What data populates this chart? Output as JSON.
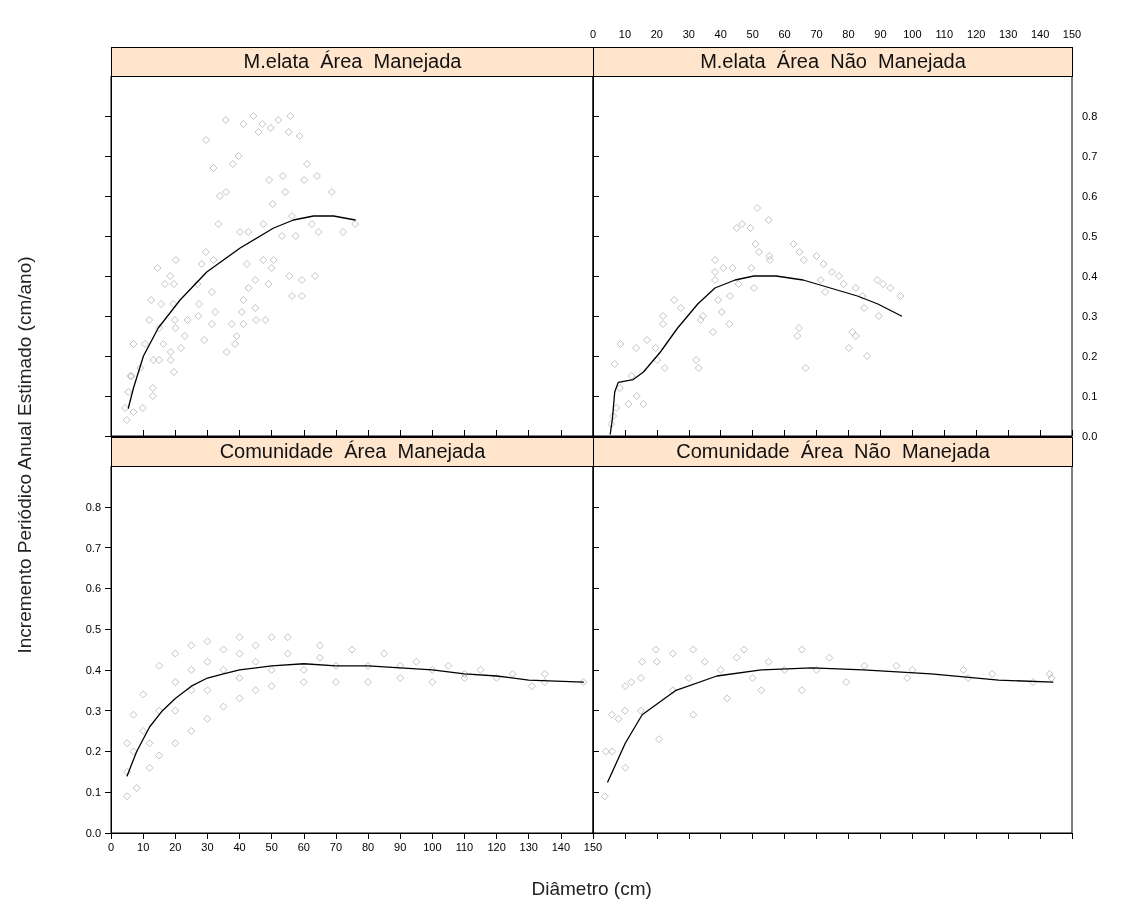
{
  "chart_data": [
    {
      "type": "scatter",
      "title": "M.elata  Área  Manejada",
      "xlim": [
        0,
        150
      ],
      "ylim": [
        0,
        0.9
      ],
      "xticks": [
        0,
        10,
        20,
        30,
        40,
        50,
        60,
        70,
        80,
        90,
        100,
        110,
        120,
        130,
        140,
        150
      ],
      "yticks": [
        0,
        0.1,
        0.2,
        0.3,
        0.4,
        0.5,
        0.6,
        0.7,
        0.8
      ],
      "tick_labels": false,
      "series": [
        {
          "type": "scatter",
          "marker": "diamond",
          "color": "#b4b4b4",
          "x": [
            35.7,
            41.2,
            44.3,
            47.1,
            45.9,
            49.7,
            52.1,
            55.8,
            55.3,
            58.7,
            29.6,
            39.7,
            37.9,
            31.9,
            61,
            64.1,
            53.5,
            49.2,
            60.1,
            54.2,
            68.7,
            33.9,
            35.8,
            50.3,
            33.4,
            56.3,
            62.5,
            64.6,
            72.2,
            76,
            47.4,
            40.2,
            42.8,
            53.2,
            57.5,
            29.5,
            20.2,
            28.2,
            31.9,
            42.3,
            47.4,
            50.6,
            50,
            14.5,
            18.4,
            19.6,
            16.8,
            55.5,
            59.4,
            63.5,
            44.9,
            42.8,
            49,
            31.4,
            26.9,
            56.3,
            59.4,
            41.2,
            12.5,
            15.6,
            19.4,
            27.4,
            44.9,
            40.7,
            27.2,
            32.4,
            48,
            45.2,
            19.9,
            23.8,
            11.9,
            37.6,
            41.2,
            31.4,
            15,
            20.1,
            23,
            29,
            39.1,
            38.6,
            36,
            16.3,
            21.8,
            7,
            10.6,
            18.6,
            13.2,
            15,
            18.6,
            19.6,
            9.1,
            6.4,
            13,
            13,
            9.9,
            4.9,
            4.4,
            5.4,
            6,
            7
          ],
          "values": [
            0.79,
            0.78,
            0.8,
            0.78,
            0.76,
            0.77,
            0.79,
            0.8,
            0.76,
            0.75,
            0.74,
            0.7,
            0.68,
            0.67,
            0.68,
            0.65,
            0.65,
            0.64,
            0.64,
            0.61,
            0.61,
            0.6,
            0.61,
            0.58,
            0.53,
            0.55,
            0.53,
            0.51,
            0.51,
            0.53,
            0.53,
            0.51,
            0.51,
            0.5,
            0.5,
            0.46,
            0.44,
            0.43,
            0.44,
            0.43,
            0.44,
            0.44,
            0.42,
            0.42,
            0.4,
            0.38,
            0.38,
            0.4,
            0.39,
            0.4,
            0.39,
            0.37,
            0.38,
            0.36,
            0.38,
            0.35,
            0.35,
            0.34,
            0.34,
            0.33,
            0.33,
            0.33,
            0.32,
            0.31,
            0.3,
            0.31,
            0.29,
            0.29,
            0.29,
            0.29,
            0.29,
            0.28,
            0.28,
            0.28,
            0.27,
            0.27,
            0.25,
            0.24,
            0.25,
            0.23,
            0.21,
            0.23,
            0.22,
            0.23,
            0.23,
            0.21,
            0.19,
            0.19,
            0.19,
            0.16,
            0.17,
            0.15,
            0.12,
            0.1,
            0.07,
            0.04,
            0.07,
            0.11,
            0.15,
            0.06
          ]
        },
        {
          "type": "line",
          "marker": "none",
          "line_style": "solid",
          "color": "#000000",
          "x": [
            5.4,
            7,
            10.1,
            14.7,
            21.5,
            29.8,
            40.2,
            50.6,
            56.8,
            63,
            69.3,
            76
          ],
          "values": [
            0.07,
            0.12,
            0.2,
            0.27,
            0.34,
            0.41,
            0.47,
            0.52,
            0.54,
            0.55,
            0.55,
            0.54
          ]
        }
      ]
    },
    {
      "type": "scatter",
      "title": "M.elata  Área  Não  Manejada",
      "xlim": [
        0,
        150
      ],
      "ylim": [
        0,
        0.9
      ],
      "xticks": [
        0,
        10,
        20,
        30,
        40,
        50,
        60,
        70,
        80,
        90,
        100,
        110,
        120,
        130,
        140,
        150
      ],
      "yticks": [
        {
          "value": 0,
          "label": "0.0"
        },
        0.1,
        0.2,
        0.3,
        0.4,
        0.5,
        0.6,
        0.7,
        0.8
      ],
      "series": [
        {
          "type": "scatter",
          "marker": "diamond",
          "color": "#b4b4b4",
          "x": [
            51.4,
            55,
            45,
            46.7,
            49.3,
            50.9,
            52,
            55.2,
            55.4,
            62.8,
            64.7,
            66,
            70,
            72.2,
            74.8,
            77,
            78.5,
            82.3,
            89,
            90.8,
            93.1,
            96.3,
            84.4,
            84.9,
            89.5,
            71.3,
            72.7,
            38.2,
            38.2,
            40.8,
            43.7,
            49.6,
            38.2,
            45.6,
            50.4,
            42.9,
            39.2,
            40.3,
            25.4,
            27.5,
            34.4,
            33.7,
            37.6,
            42.7,
            21.9,
            21.9,
            16.9,
            13.5,
            19.6,
            8.6,
            6.8,
            32.3,
            33.1,
            22.5,
            20.1,
            64.5,
            64,
            66.6,
            81.2,
            82.3,
            80.1,
            85.8,
            12.1,
            8.4,
            13.7,
            15.8,
            11.1,
            7.3,
            6.3,
            5.7
          ],
          "values": [
            0.57,
            0.54,
            0.52,
            0.53,
            0.52,
            0.48,
            0.46,
            0.45,
            0.44,
            0.48,
            0.46,
            0.44,
            0.45,
            0.43,
            0.41,
            0.4,
            0.38,
            0.37,
            0.39,
            0.38,
            0.37,
            0.35,
            0.35,
            0.32,
            0.3,
            0.39,
            0.36,
            0.44,
            0.41,
            0.42,
            0.42,
            0.42,
            0.39,
            0.38,
            0.37,
            0.35,
            0.34,
            0.31,
            0.34,
            0.32,
            0.3,
            0.29,
            0.26,
            0.28,
            0.3,
            0.28,
            0.24,
            0.22,
            0.22,
            0.23,
            0.18,
            0.19,
            0.17,
            0.17,
            0.19,
            0.27,
            0.25,
            0.17,
            0.26,
            0.25,
            0.22,
            0.2,
            0.15,
            0.12,
            0.1,
            0.08,
            0.08,
            0.07,
            0.05,
            0.03
          ]
        },
        {
          "type": "line",
          "marker": "none",
          "line_style": "solid",
          "color": "#000000",
          "x": [
            5.4,
            6.1,
            6.8,
            7.9,
            12.6,
            15.8,
            21.1,
            26.5,
            32.8,
            38.2,
            44.5,
            50.4,
            57.3,
            65.8,
            74.3,
            82.8,
            89.2,
            96.6
          ],
          "values": [
            0.005,
            0.045,
            0.11,
            0.134,
            0.141,
            0.16,
            0.21,
            0.27,
            0.33,
            0.37,
            0.39,
            0.4,
            0.4,
            0.39,
            0.37,
            0.35,
            0.33,
            0.3
          ]
        }
      ]
    },
    {
      "type": "scatter",
      "title": "Comunidade  Área  Manejada",
      "xlabel": "Diâmetro (cm)",
      "ylabel": "Incremento Periódico Anual Estimado (cm/ano)",
      "xlim": [
        0,
        150
      ],
      "ylim": [
        0,
        0.9
      ],
      "xticks": [
        0,
        10,
        20,
        30,
        40,
        50,
        60,
        70,
        80,
        90,
        100,
        110,
        120,
        130,
        140,
        150
      ],
      "yticks": [
        {
          "value": 0,
          "label": "0.0"
        },
        0.1,
        0.2,
        0.3,
        0.4,
        0.5,
        0.6,
        0.7,
        0.8
      ],
      "series": [
        {
          "type": "scatter",
          "marker": "diamond",
          "color": "#b4b4b4",
          "x": [
            5,
            7,
            10,
            15,
            20,
            25,
            30,
            40,
            50,
            55,
            65,
            75,
            85,
            95,
            105,
            115,
            125,
            135,
            147,
            5,
            8,
            12,
            15,
            20,
            25,
            30,
            35,
            40,
            45,
            50,
            60,
            70,
            80,
            90,
            100,
            110,
            120,
            131,
            135,
            5,
            7,
            10,
            12,
            15,
            20,
            20,
            25,
            25,
            30,
            30,
            35,
            35,
            40,
            40,
            45,
            45,
            50,
            55,
            60,
            65,
            70,
            80,
            90,
            100,
            110
          ],
          "values": [
            0.22,
            0.29,
            0.34,
            0.41,
            0.44,
            0.46,
            0.47,
            0.48,
            0.48,
            0.48,
            0.46,
            0.45,
            0.44,
            0.42,
            0.41,
            0.4,
            0.39,
            0.39,
            0.37,
            0.09,
            0.11,
            0.16,
            0.19,
            0.22,
            0.25,
            0.28,
            0.31,
            0.33,
            0.35,
            0.36,
            0.37,
            0.37,
            0.37,
            0.38,
            0.37,
            0.38,
            0.38,
            0.36,
            0.37,
            0.15,
            0.2,
            0.25,
            0.22,
            0.3,
            0.3,
            0.37,
            0.35,
            0.4,
            0.35,
            0.42,
            0.4,
            0.45,
            0.38,
            0.44,
            0.42,
            0.46,
            0.4,
            0.44,
            0.4,
            0.43,
            0.41,
            0.41,
            0.41,
            0.4,
            0.39
          ]
        },
        {
          "type": "line",
          "marker": "none",
          "line_style": "solid",
          "color": "#000000",
          "x": [
            5,
            8,
            12,
            16,
            20,
            25,
            30,
            35,
            40,
            50,
            60,
            70,
            80,
            90,
            100,
            110,
            120,
            130,
            147
          ],
          "values": [
            0.14,
            0.2,
            0.26,
            0.3,
            0.33,
            0.36,
            0.38,
            0.39,
            0.4,
            0.41,
            0.415,
            0.41,
            0.41,
            0.405,
            0.4,
            0.39,
            0.385,
            0.375,
            0.37
          ]
        }
      ]
    },
    {
      "type": "scatter",
      "title": "Comunidade  Área  Não  Manejada",
      "xlim": [
        0,
        150
      ],
      "ylim": [
        0,
        0.9
      ],
      "xticks": [
        0,
        10,
        20,
        30,
        40,
        50,
        60,
        70,
        80,
        90,
        100,
        110,
        120,
        130,
        140,
        150
      ],
      "yticks": [
        0,
        0.1,
        0.2,
        0.3,
        0.4,
        0.5,
        0.6,
        0.7,
        0.8
      ],
      "tick_labels": false,
      "series": [
        {
          "type": "scatter",
          "marker": "diamond",
          "color": "#b4b4b4",
          "x": [
            4,
            5.9,
            10.1,
            15.4,
            19.7,
            31.4,
            47.3,
            65.4,
            74,
            95,
            116,
            143,
            3.7,
            10.1,
            20.7,
            31.4,
            42,
            52.7,
            65.4,
            79.3,
            98.4,
            117.5,
            137.8,
            143.6,
            6,
            8,
            10,
            12,
            15,
            15,
            20,
            25,
            25,
            30,
            35,
            40,
            45,
            50,
            55,
            60,
            70,
            85,
            100,
            125
          ],
          "values": [
            0.2,
            0.29,
            0.36,
            0.42,
            0.45,
            0.45,
            0.45,
            0.45,
            0.43,
            0.41,
            0.4,
            0.39,
            0.09,
            0.16,
            0.23,
            0.29,
            0.33,
            0.35,
            0.35,
            0.37,
            0.38,
            0.38,
            0.37,
            0.38,
            0.2,
            0.28,
            0.3,
            0.37,
            0.38,
            0.3,
            0.42,
            0.44,
            0.35,
            0.38,
            0.42,
            0.4,
            0.43,
            0.38,
            0.42,
            0.4,
            0.4,
            0.41,
            0.4,
            0.39
          ]
        },
        {
          "type": "line",
          "marker": "none",
          "line_style": "solid",
          "color": "#000000",
          "x": [
            4.6,
            10.1,
            15.4,
            26,
            38.8,
            52.7,
            68.6,
            84.6,
            105.9,
            127,
            144
          ],
          "values": [
            0.125,
            0.22,
            0.29,
            0.35,
            0.385,
            0.4,
            0.405,
            0.4,
            0.39,
            0.375,
            0.37
          ]
        }
      ]
    }
  ]
}
